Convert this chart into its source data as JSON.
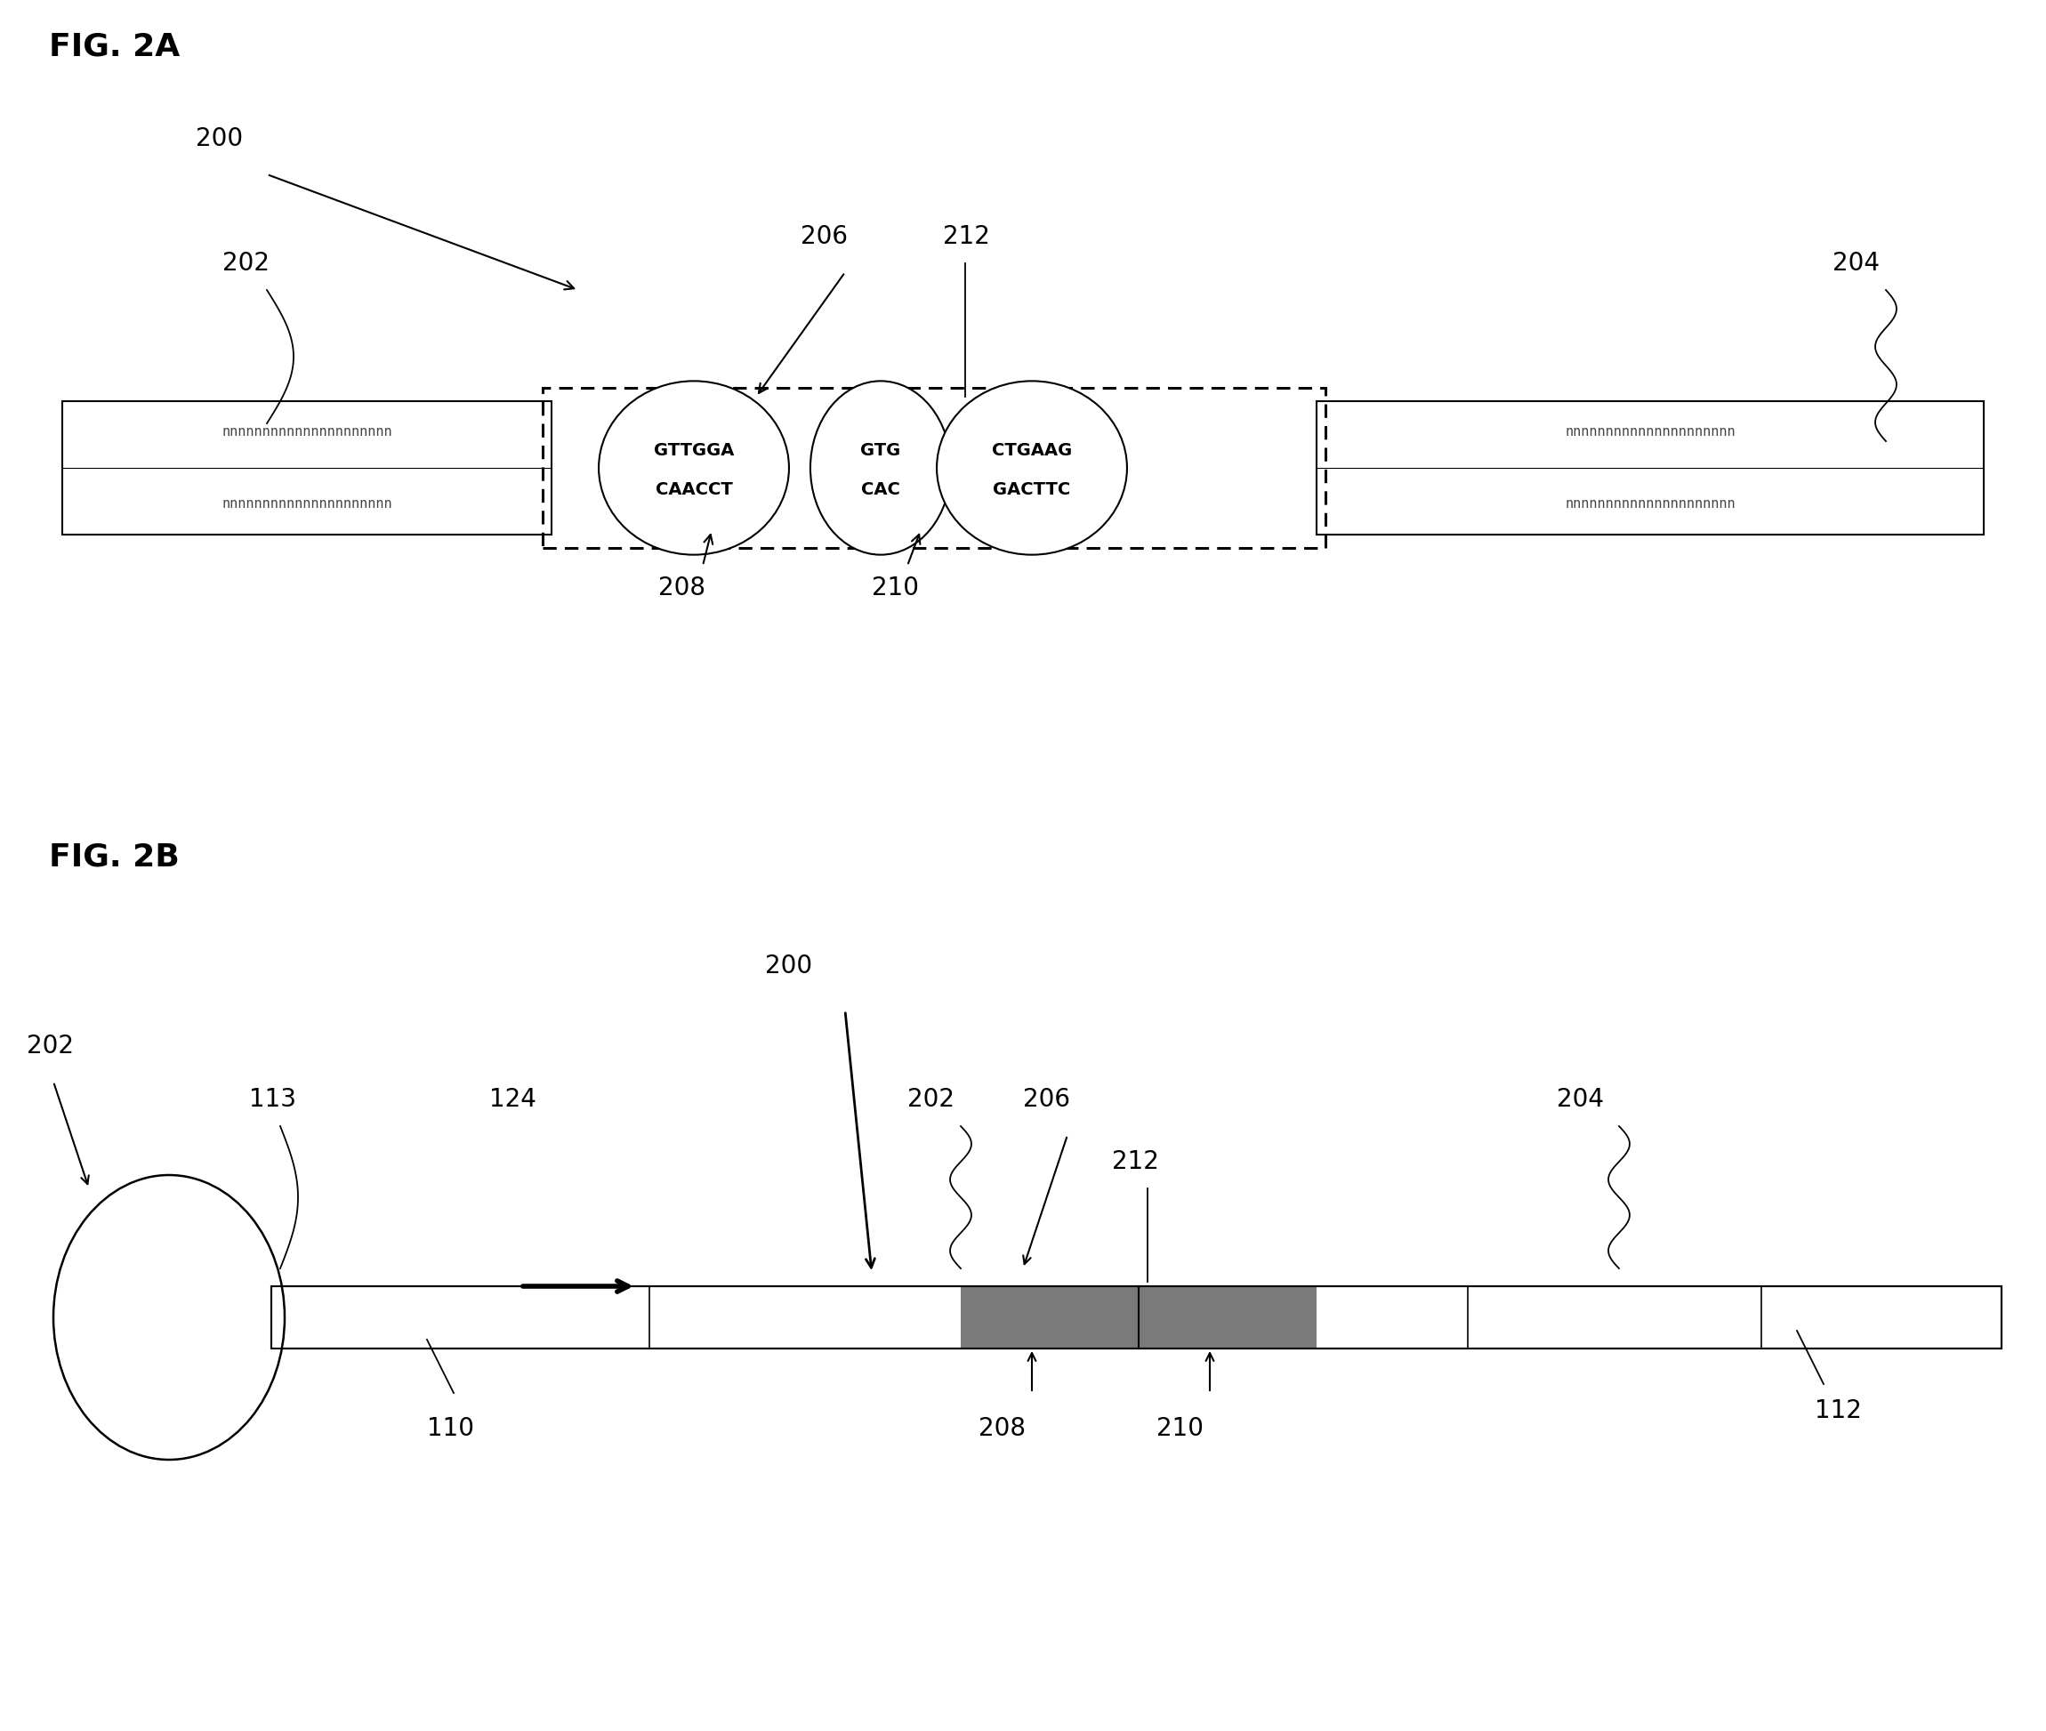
{
  "fig_label_a": "FIG. 2A",
  "fig_label_b": "FIG. 2B",
  "bg_color": "#ffffff",
  "fig2a": {
    "ref_200": "200",
    "ref_202": "202",
    "ref_204": "204",
    "ref_206": "206",
    "ref_208": "208",
    "ref_210": "210",
    "ref_212": "212",
    "left_seq_top": "nnnnnnnnnnnnnnnnnnnnn",
    "left_seq_bot": "nnnnnnnnnnnnnnnnnnnnn",
    "right_seq_top": "nnnnnnnnnnnnnnnnnnnnn",
    "right_seq_bot": "nnnnnnnnnnnnnnnnnnnnn",
    "oval1_line1": "GTTGGA",
    "oval1_line2": "CAACCT",
    "oval2_line1": "GTG",
    "oval2_line2": "CAC",
    "oval3_line1": "CTGAAG",
    "oval3_line2": "GACTTC"
  },
  "fig2b": {
    "ref_200": "200",
    "ref_202_circle": "202",
    "ref_202_bar": "202",
    "ref_204": "204",
    "ref_206": "206",
    "ref_208": "208",
    "ref_210": "210",
    "ref_212": "212",
    "ref_113": "113",
    "ref_110": "110",
    "ref_112": "112",
    "ref_124": "124"
  }
}
